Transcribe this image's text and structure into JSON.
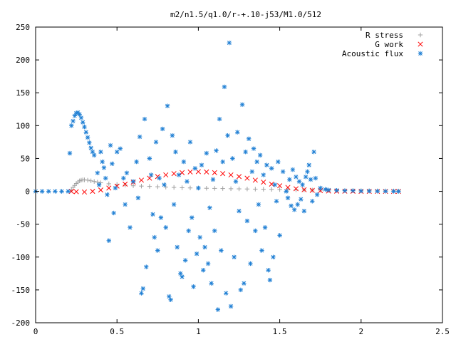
{
  "chart_data": {
    "type": "scatter",
    "title": "m2/n1.5/q1.0/r-+.10-j53/M1.0/512",
    "xlim": [
      0,
      2.5
    ],
    "ylim": [
      -200,
      250
    ],
    "x_ticks": [
      0,
      0.5,
      1,
      1.5,
      2,
      2.5
    ],
    "x_tick_labels": [
      "0",
      "0.5",
      "1",
      "1.5",
      "2",
      "2.5"
    ],
    "y_ticks": [
      -200,
      -150,
      -100,
      -50,
      0,
      50,
      100,
      150,
      200,
      250
    ],
    "y_tick_labels": [
      "-200",
      "-150",
      "-100",
      "-50",
      "0",
      "50",
      "100",
      "150",
      "200",
      "250"
    ],
    "grid": false,
    "legend_position": "top-right",
    "series": [
      {
        "name": "R stress",
        "marker": "plus",
        "color": "#a0a0a0",
        "points": [
          [
            0.22,
            2
          ],
          [
            0.23,
            6
          ],
          [
            0.24,
            9
          ],
          [
            0.25,
            12
          ],
          [
            0.26,
            14
          ],
          [
            0.27,
            16
          ],
          [
            0.28,
            17
          ],
          [
            0.29,
            17.5
          ],
          [
            0.3,
            17.5
          ],
          [
            0.32,
            17
          ],
          [
            0.34,
            16
          ],
          [
            0.36,
            15
          ],
          [
            0.38,
            14
          ],
          [
            0.4,
            13
          ],
          [
            0.45,
            11.5
          ],
          [
            0.5,
            10.5
          ],
          [
            0.55,
            9.5
          ],
          [
            0.6,
            8.5
          ],
          [
            0.65,
            8
          ],
          [
            0.7,
            7.5
          ],
          [
            0.75,
            7
          ],
          [
            0.8,
            6.5
          ],
          [
            0.85,
            6
          ],
          [
            0.9,
            5.5
          ],
          [
            0.95,
            5.2
          ],
          [
            1.0,
            5
          ],
          [
            1.05,
            4.7
          ],
          [
            1.1,
            4.5
          ],
          [
            1.15,
            4.3
          ],
          [
            1.2,
            4
          ],
          [
            1.25,
            3.8
          ],
          [
            1.3,
            3.6
          ],
          [
            1.35,
            3.4
          ],
          [
            1.4,
            3.2
          ],
          [
            1.45,
            3
          ],
          [
            1.5,
            2.8
          ],
          [
            1.55,
            2.6
          ],
          [
            1.6,
            2.4
          ],
          [
            1.65,
            2.2
          ],
          [
            1.7,
            2
          ],
          [
            1.75,
            1.8
          ],
          [
            1.8,
            1.6
          ],
          [
            1.85,
            1.4
          ],
          [
            1.9,
            1.2
          ],
          [
            1.95,
            1.1
          ],
          [
            2.0,
            1
          ],
          [
            2.05,
            0.9
          ],
          [
            2.1,
            0.8
          ],
          [
            2.15,
            0.7
          ],
          [
            2.2,
            0.6
          ],
          [
            2.23,
            0.5
          ]
        ]
      },
      {
        "name": "G work",
        "marker": "cross",
        "color": "#ff0000",
        "points": [
          [
            0.22,
            0
          ],
          [
            0.25,
            -0.5
          ],
          [
            0.3,
            -1
          ],
          [
            0.35,
            0
          ],
          [
            0.4,
            2
          ],
          [
            0.45,
            5
          ],
          [
            0.5,
            8
          ],
          [
            0.55,
            11
          ],
          [
            0.6,
            14
          ],
          [
            0.65,
            17
          ],
          [
            0.7,
            20
          ],
          [
            0.75,
            22.5
          ],
          [
            0.8,
            25
          ],
          [
            0.85,
            27
          ],
          [
            0.9,
            28.5
          ],
          [
            0.95,
            29.5
          ],
          [
            1.0,
            30
          ],
          [
            1.05,
            29.5
          ],
          [
            1.1,
            28.5
          ],
          [
            1.15,
            27
          ],
          [
            1.2,
            25
          ],
          [
            1.25,
            22.5
          ],
          [
            1.3,
            20
          ],
          [
            1.35,
            17
          ],
          [
            1.4,
            14
          ],
          [
            1.45,
            11
          ],
          [
            1.5,
            8.5
          ],
          [
            1.55,
            6
          ],
          [
            1.6,
            4
          ],
          [
            1.65,
            2.5
          ],
          [
            1.7,
            1.5
          ],
          [
            1.75,
            1
          ],
          [
            1.8,
            0.5
          ],
          [
            1.85,
            0.3
          ],
          [
            1.9,
            0.2
          ],
          [
            1.95,
            0.1
          ],
          [
            2.0,
            0
          ],
          [
            2.05,
            0
          ],
          [
            2.1,
            0
          ],
          [
            2.15,
            0
          ],
          [
            2.2,
            0
          ],
          [
            2.23,
            0
          ]
        ]
      },
      {
        "name": "Acoustic flux",
        "marker": "star",
        "color": "#1f7fd4",
        "points": [
          [
            0.0,
            0
          ],
          [
            0.04,
            0
          ],
          [
            0.08,
            0
          ],
          [
            0.12,
            0
          ],
          [
            0.16,
            0
          ],
          [
            0.2,
            0
          ],
          [
            0.21,
            58
          ],
          [
            0.22,
            100
          ],
          [
            0.23,
            107
          ],
          [
            0.24,
            115
          ],
          [
            0.25,
            119
          ],
          [
            0.26,
            120
          ],
          [
            0.27,
            117
          ],
          [
            0.28,
            112
          ],
          [
            0.29,
            105
          ],
          [
            0.3,
            98
          ],
          [
            0.31,
            90
          ],
          [
            0.32,
            82
          ],
          [
            0.33,
            74
          ],
          [
            0.34,
            66
          ],
          [
            0.35,
            60
          ],
          [
            0.36,
            55
          ],
          [
            0.38,
            28
          ],
          [
            0.39,
            10
          ],
          [
            0.4,
            60
          ],
          [
            0.41,
            45
          ],
          [
            0.42,
            36
          ],
          [
            0.43,
            20
          ],
          [
            0.44,
            -5
          ],
          [
            0.45,
            -75
          ],
          [
            0.46,
            70
          ],
          [
            0.47,
            42
          ],
          [
            0.48,
            -33
          ],
          [
            0.49,
            5
          ],
          [
            0.5,
            60
          ],
          [
            0.52,
            65
          ],
          [
            0.54,
            20
          ],
          [
            0.55,
            -20
          ],
          [
            0.56,
            28
          ],
          [
            0.58,
            -55
          ],
          [
            0.6,
            15
          ],
          [
            0.62,
            45
          ],
          [
            0.63,
            -10
          ],
          [
            0.64,
            83
          ],
          [
            0.65,
            -155
          ],
          [
            0.66,
            -148
          ],
          [
            0.67,
            110
          ],
          [
            0.68,
            -115
          ],
          [
            0.7,
            50
          ],
          [
            0.71,
            25
          ],
          [
            0.72,
            -35
          ],
          [
            0.73,
            -70
          ],
          [
            0.74,
            75
          ],
          [
            0.75,
            -90
          ],
          [
            0.76,
            20
          ],
          [
            0.77,
            -40
          ],
          [
            0.78,
            95
          ],
          [
            0.79,
            10
          ],
          [
            0.8,
            -55
          ],
          [
            0.81,
            130
          ],
          [
            0.82,
            -160
          ],
          [
            0.83,
            -165
          ],
          [
            0.84,
            85
          ],
          [
            0.85,
            -20
          ],
          [
            0.86,
            60
          ],
          [
            0.87,
            -85
          ],
          [
            0.88,
            25
          ],
          [
            0.89,
            -125
          ],
          [
            0.9,
            -130
          ],
          [
            0.91,
            45
          ],
          [
            0.92,
            -105
          ],
          [
            0.93,
            15
          ],
          [
            0.94,
            -60
          ],
          [
            0.95,
            75
          ],
          [
            0.96,
            -40
          ],
          [
            0.97,
            -145
          ],
          [
            0.98,
            35
          ],
          [
            0.99,
            -95
          ],
          [
            1.0,
            5
          ],
          [
            1.01,
            -70
          ],
          [
            1.02,
            40
          ],
          [
            1.03,
            -120
          ],
          [
            1.04,
            -85
          ],
          [
            1.05,
            58
          ],
          [
            1.06,
            -110
          ],
          [
            1.07,
            -25
          ],
          [
            1.08,
            -140
          ],
          [
            1.09,
            18
          ],
          [
            1.1,
            -60
          ],
          [
            1.11,
            62
          ],
          [
            1.12,
            -180
          ],
          [
            1.13,
            110
          ],
          [
            1.14,
            -90
          ],
          [
            1.15,
            45
          ],
          [
            1.16,
            159
          ],
          [
            1.17,
            -155
          ],
          [
            1.18,
            85
          ],
          [
            1.19,
            226
          ],
          [
            1.2,
            -175
          ],
          [
            1.21,
            50
          ],
          [
            1.22,
            -100
          ],
          [
            1.23,
            15
          ],
          [
            1.24,
            90
          ],
          [
            1.25,
            -30
          ],
          [
            1.26,
            -150
          ],
          [
            1.27,
            132
          ],
          [
            1.28,
            -140
          ],
          [
            1.29,
            60
          ],
          [
            1.3,
            -45
          ],
          [
            1.31,
            80
          ],
          [
            1.32,
            -110
          ],
          [
            1.33,
            30
          ],
          [
            1.34,
            65
          ],
          [
            1.35,
            -60
          ],
          [
            1.36,
            45
          ],
          [
            1.37,
            -20
          ],
          [
            1.38,
            55
          ],
          [
            1.39,
            -90
          ],
          [
            1.4,
            25
          ],
          [
            1.41,
            -55
          ],
          [
            1.42,
            40
          ],
          [
            1.43,
            -120
          ],
          [
            1.44,
            -135
          ],
          [
            1.45,
            35
          ],
          [
            1.46,
            -100
          ],
          [
            1.47,
            10
          ],
          [
            1.48,
            -15
          ],
          [
            1.49,
            45
          ],
          [
            1.5,
            -67
          ],
          [
            1.52,
            30
          ],
          [
            1.54,
            0
          ],
          [
            1.55,
            -10
          ],
          [
            1.56,
            18
          ],
          [
            1.57,
            -22
          ],
          [
            1.58,
            33
          ],
          [
            1.59,
            -28
          ],
          [
            1.6,
            22
          ],
          [
            1.61,
            -20
          ],
          [
            1.62,
            15
          ],
          [
            1.63,
            -12
          ],
          [
            1.64,
            10
          ],
          [
            1.65,
            -30
          ],
          [
            1.66,
            22
          ],
          [
            1.67,
            30
          ],
          [
            1.68,
            40
          ],
          [
            1.69,
            18
          ],
          [
            1.7,
            -15
          ],
          [
            1.71,
            60
          ],
          [
            1.72,
            20
          ],
          [
            1.73,
            -5
          ],
          [
            1.75,
            5
          ],
          [
            1.78,
            3
          ],
          [
            1.8,
            2
          ],
          [
            1.85,
            1.5
          ],
          [
            1.9,
            1
          ],
          [
            1.95,
            1
          ],
          [
            2.0,
            0.5
          ],
          [
            2.05,
            0.5
          ],
          [
            2.1,
            0.3
          ],
          [
            2.15,
            0.2
          ],
          [
            2.2,
            0.1
          ],
          [
            2.23,
            0
          ]
        ]
      }
    ]
  }
}
